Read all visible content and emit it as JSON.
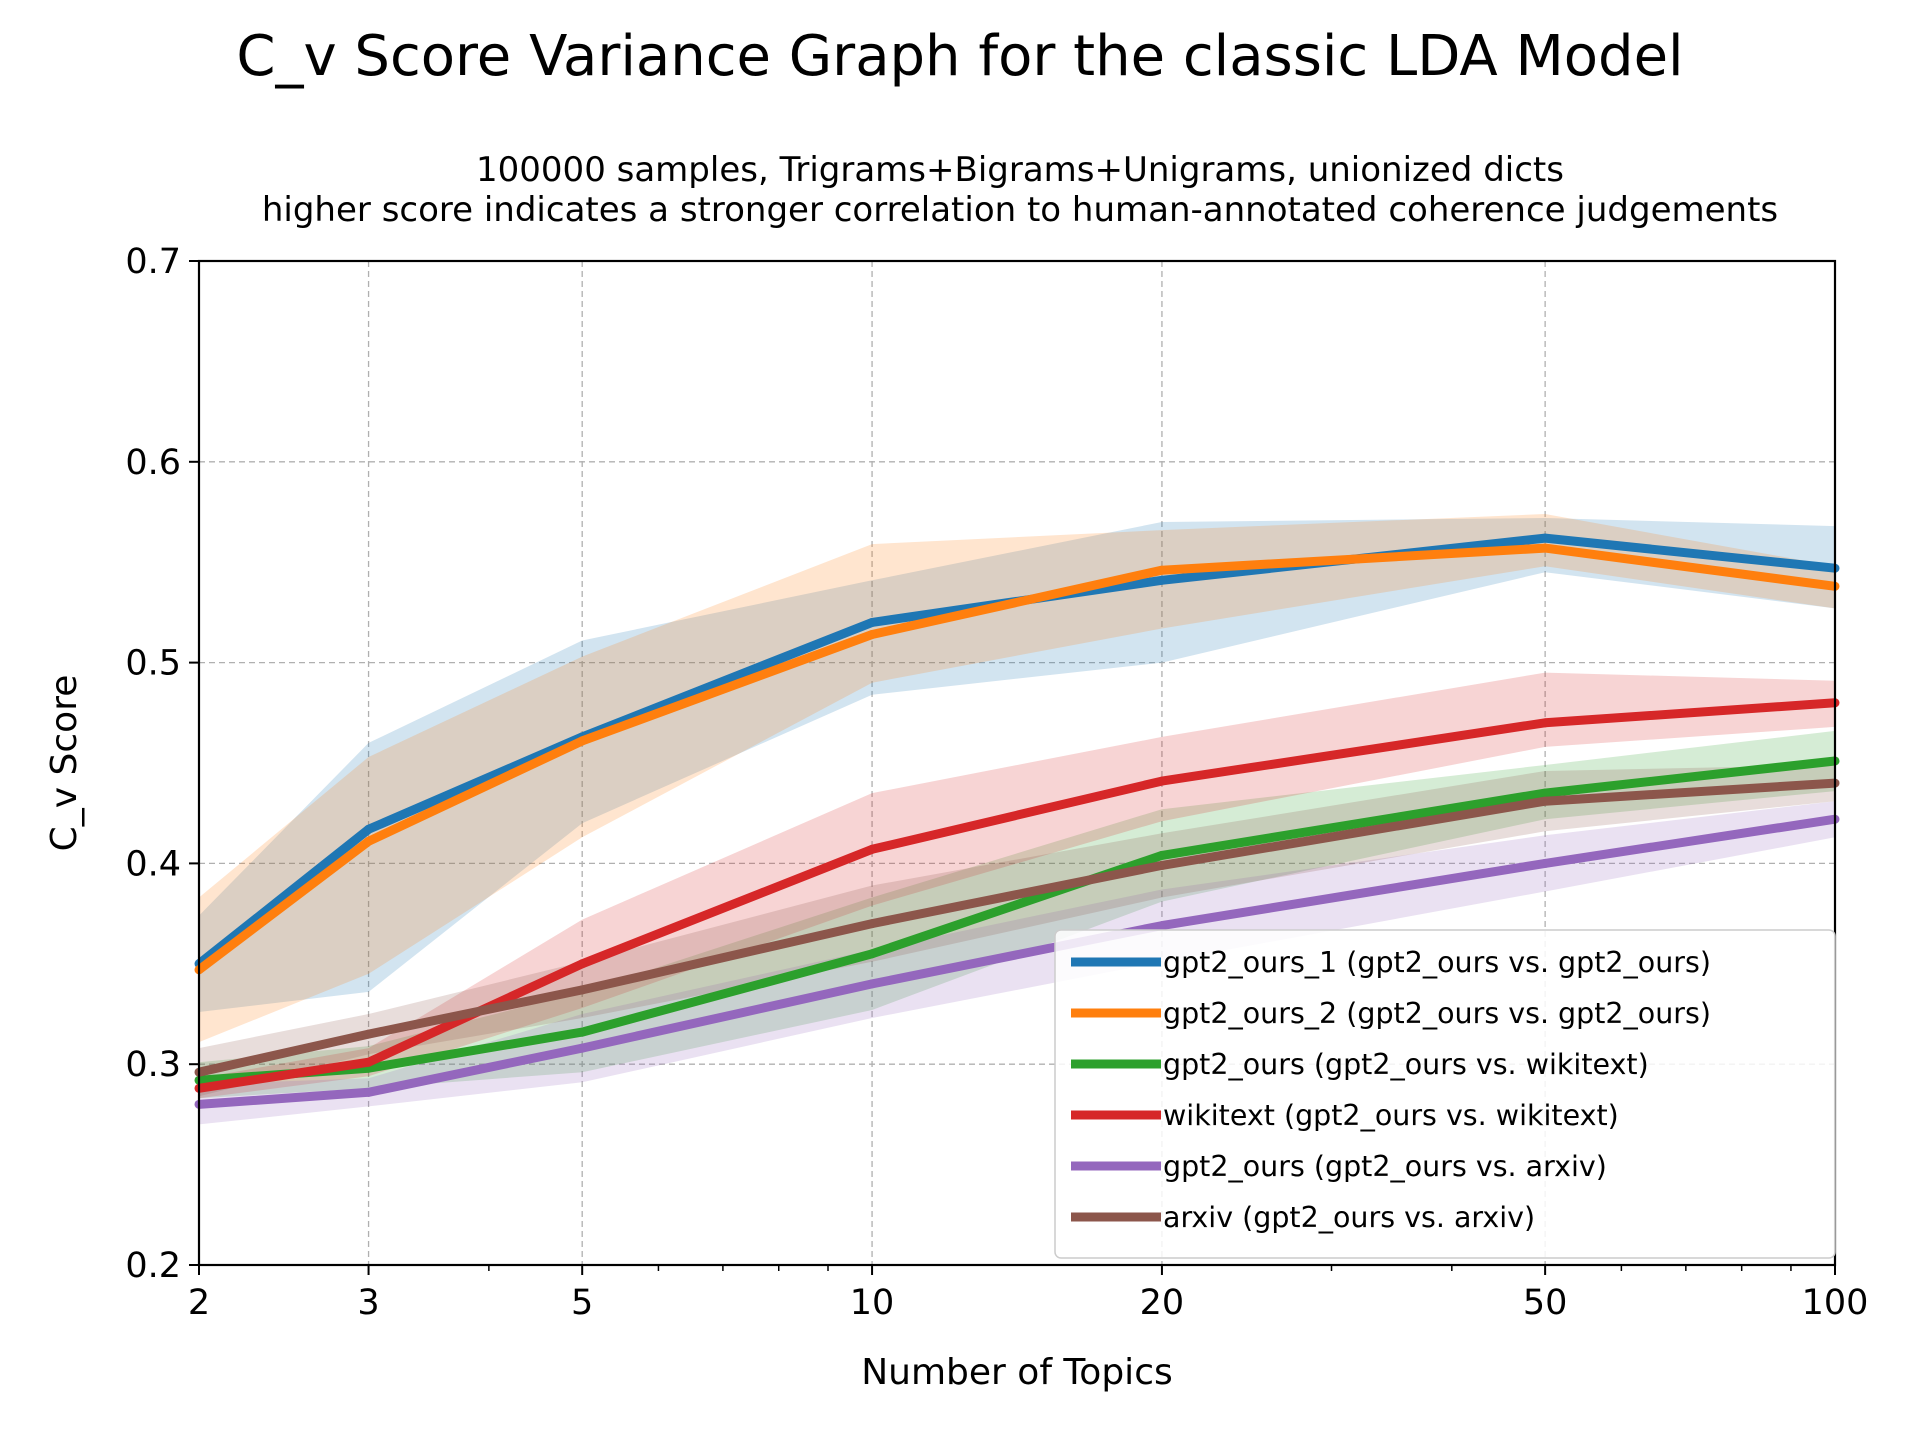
{
  "chart_data": {
    "type": "line",
    "title": "C_v Score Variance Graph for the classic LDA Model",
    "subtitle_lines": [
      "100000 samples, Trigrams+Bigrams+Unigrams, unionized dicts",
      "higher score indicates a stronger correlation to human-annotated coherence judgements"
    ],
    "xlabel": "Number of Topics",
    "ylabel": "C_v Score",
    "xscale": "log",
    "x": [
      2,
      3,
      5,
      10,
      20,
      50,
      100
    ],
    "x_ticks": [
      "2",
      "3",
      "5",
      "10",
      "20",
      "50",
      "100"
    ],
    "xlim": [
      2,
      100
    ],
    "ylim": [
      0.2,
      0.7
    ],
    "y_ticks": [
      "0.2",
      "0.3",
      "0.4",
      "0.5",
      "0.6",
      "0.7"
    ],
    "grid": true,
    "legend_position": "lower-right",
    "series": [
      {
        "name": "gpt2_ours_1 (gpt2_ours vs. gpt2_ours)",
        "color": "#1f77b4",
        "values": [
          0.35,
          0.417,
          0.463,
          0.52,
          0.541,
          0.562,
          0.547
        ],
        "lower": [
          0.326,
          0.336,
          0.42,
          0.484,
          0.5,
          0.545,
          0.527
        ],
        "upper": [
          0.374,
          0.46,
          0.511,
          0.541,
          0.57,
          0.572,
          0.568
        ]
      },
      {
        "name": "gpt2_ours_2 (gpt2_ours vs. gpt2_ours)",
        "color": "#ff7f0e",
        "values": [
          0.347,
          0.411,
          0.461,
          0.514,
          0.546,
          0.557,
          0.538
        ],
        "lower": [
          0.311,
          0.345,
          0.413,
          0.49,
          0.517,
          0.548,
          0.527
        ],
        "upper": [
          0.383,
          0.453,
          0.503,
          0.559,
          0.566,
          0.574,
          0.548
        ]
      },
      {
        "name": "gpt2_ours (gpt2_ours vs. wikitext)",
        "color": "#2ca02c",
        "values": [
          0.292,
          0.298,
          0.316,
          0.355,
          0.404,
          0.435,
          0.451
        ],
        "lower": [
          0.283,
          0.288,
          0.296,
          0.327,
          0.381,
          0.422,
          0.436
        ],
        "upper": [
          0.301,
          0.309,
          0.336,
          0.383,
          0.427,
          0.449,
          0.466
        ]
      },
      {
        "name": "wikitext (gpt2_ours vs. wikitext)",
        "color": "#d62728",
        "values": [
          0.288,
          0.301,
          0.35,
          0.407,
          0.441,
          0.47,
          0.48
        ],
        "lower": [
          0.283,
          0.294,
          0.328,
          0.379,
          0.421,
          0.458,
          0.468
        ],
        "upper": [
          0.293,
          0.308,
          0.372,
          0.435,
          0.463,
          0.495,
          0.491
        ]
      },
      {
        "name": "gpt2_ours (gpt2_ours vs. arxiv)",
        "color": "#9467bd",
        "values": [
          0.28,
          0.286,
          0.308,
          0.34,
          0.369,
          0.4,
          0.422
        ],
        "lower": [
          0.27,
          0.279,
          0.291,
          0.323,
          0.351,
          0.386,
          0.413
        ],
        "upper": [
          0.29,
          0.293,
          0.325,
          0.357,
          0.387,
          0.414,
          0.431
        ]
      },
      {
        "name": "arxiv (gpt2_ours vs. arxiv)",
        "color": "#8c564b",
        "values": [
          0.296,
          0.315,
          0.337,
          0.37,
          0.399,
          0.431,
          0.44
        ],
        "lower": [
          0.284,
          0.305,
          0.323,
          0.351,
          0.383,
          0.416,
          0.431
        ],
        "upper": [
          0.308,
          0.325,
          0.351,
          0.389,
          0.415,
          0.446,
          0.449
        ]
      }
    ]
  }
}
